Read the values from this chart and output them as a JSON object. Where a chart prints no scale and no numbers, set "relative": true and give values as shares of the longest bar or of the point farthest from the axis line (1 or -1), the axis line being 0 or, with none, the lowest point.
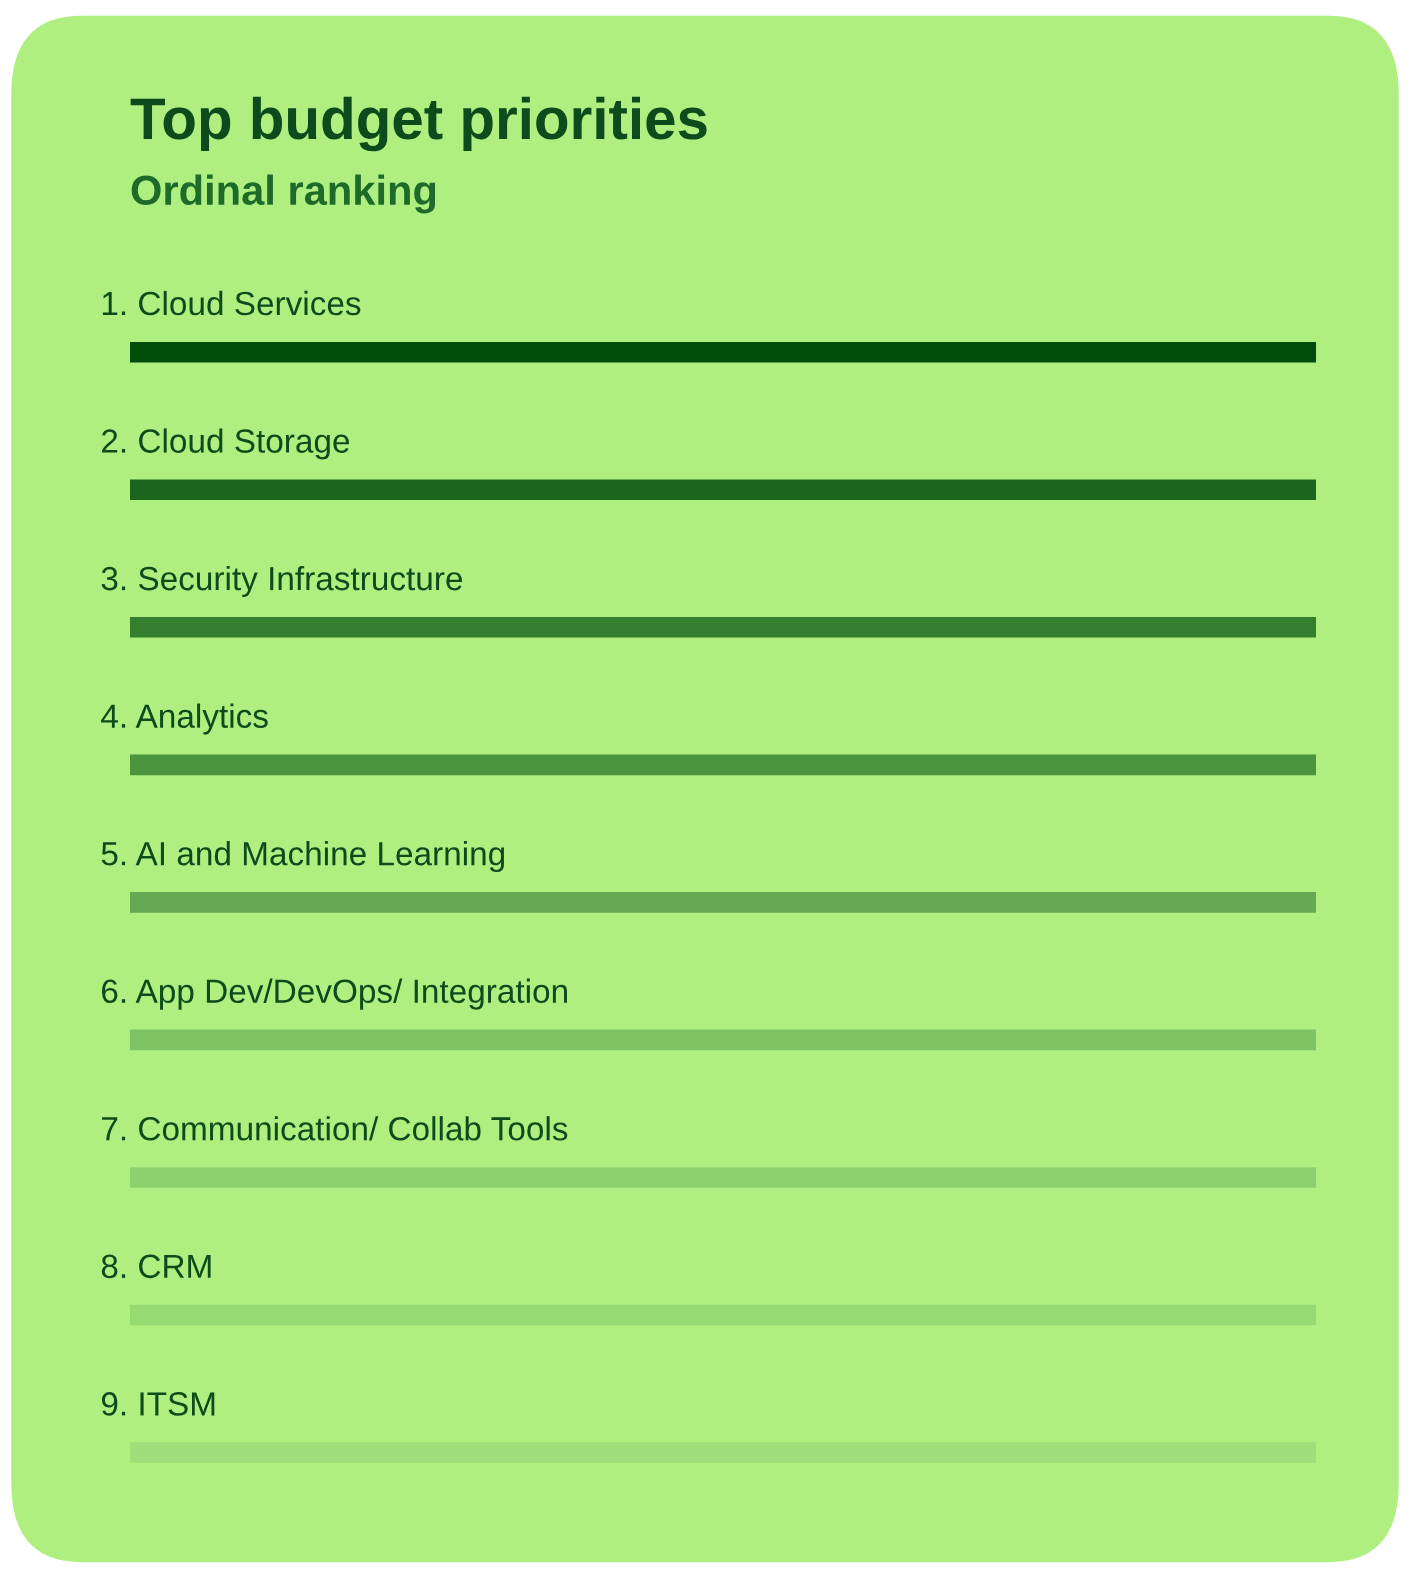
{
  "chart_data": {
    "type": "bar",
    "orientation": "horizontal",
    "relative": true,
    "title": "Top budget priorities",
    "subtitle": "Ordinal ranking",
    "categories": [
      "1. Cloud Services",
      "2. Cloud Storage",
      "3. Security Infrastructure",
      "4. Analytics",
      "5. AI and Machine Learning",
      "6. App Dev/DevOps/ Integration",
      "7. Communication/ Collab Tools",
      "8. CRM",
      "9. ITSM"
    ],
    "values": [
      1,
      1,
      1,
      1,
      1,
      1,
      1,
      1,
      1
    ],
    "colors": [
      "#004d0b",
      "#1b661c",
      "#357e2d",
      "#4b943d",
      "#65aa53",
      "#7ec465",
      "#8cd06e",
      "#96da74",
      "#9fde7a"
    ],
    "legend": false
  }
}
